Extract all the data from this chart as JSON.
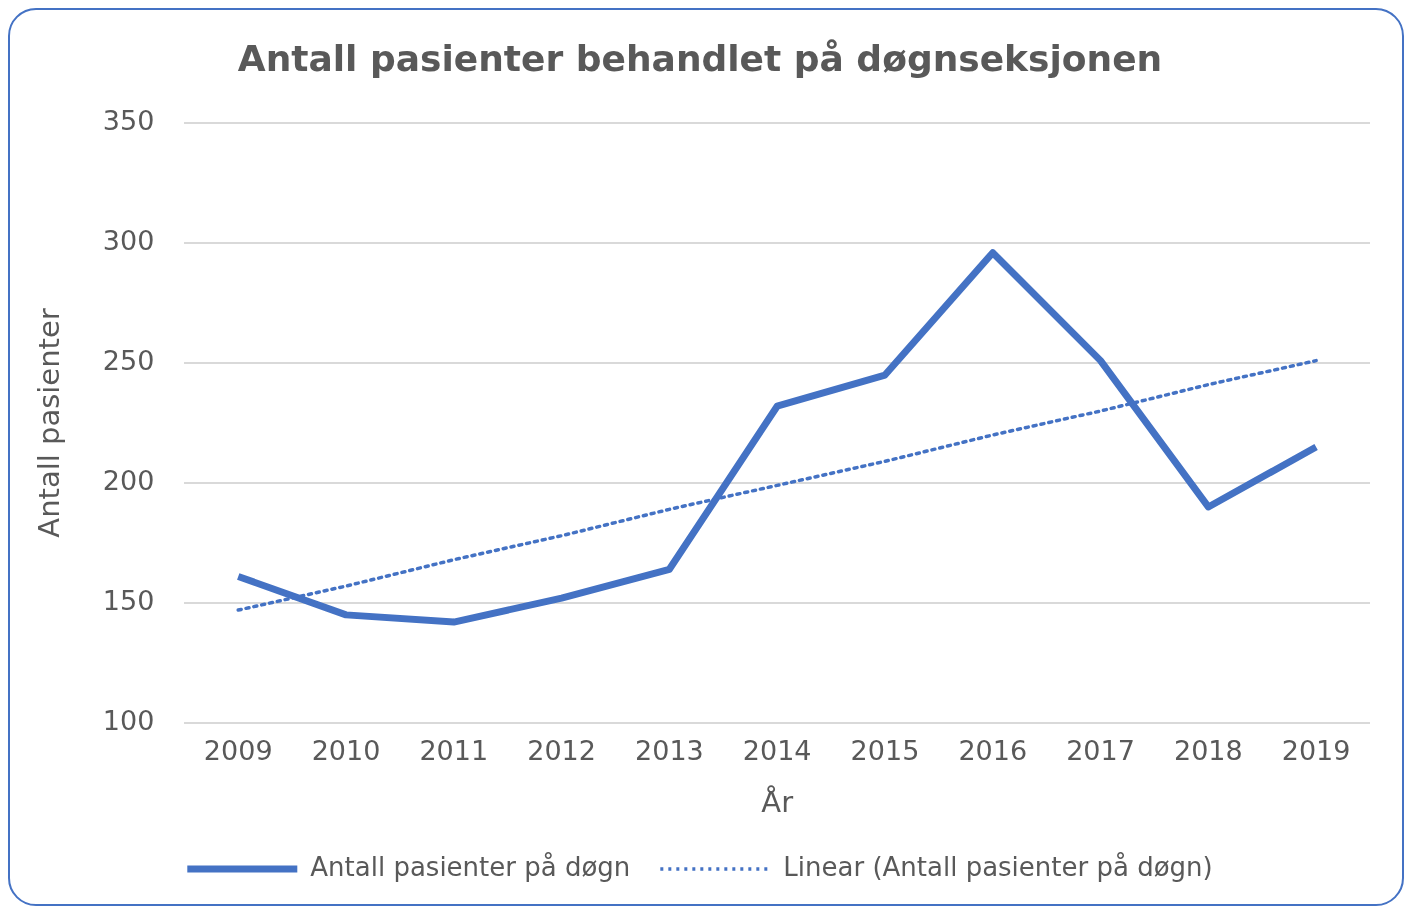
{
  "chart_data": {
    "type": "line",
    "title": "Antall pasienter behandlet på døgnseksjonen",
    "xlabel": "År",
    "ylabel": "Antall pasienter",
    "categories": [
      "2009",
      "2010",
      "2011",
      "2012",
      "2013",
      "2014",
      "2015",
      "2016",
      "2017",
      "2018",
      "2019"
    ],
    "series": [
      {
        "name": "Antall pasienter på døgn",
        "color": "#4472c4",
        "values": [
          161,
          145,
          142,
          152,
          164,
          232,
          245,
          296,
          251,
          190,
          215
        ],
        "line_style": "solid"
      },
      {
        "name": "Linear (Antall pasienter på døgn)",
        "color": "#4472c4",
        "type": "line",
        "values": [
          147,
          157,
          168,
          178,
          189,
          199,
          209,
          220,
          230,
          241,
          251
        ],
        "line_style": "dotted"
      }
    ],
    "ylim": [
      100,
      350
    ],
    "yticks": [
      100,
      150,
      200,
      250,
      300,
      350
    ],
    "grid": "y",
    "legend": "bottom",
    "marker": "none"
  }
}
